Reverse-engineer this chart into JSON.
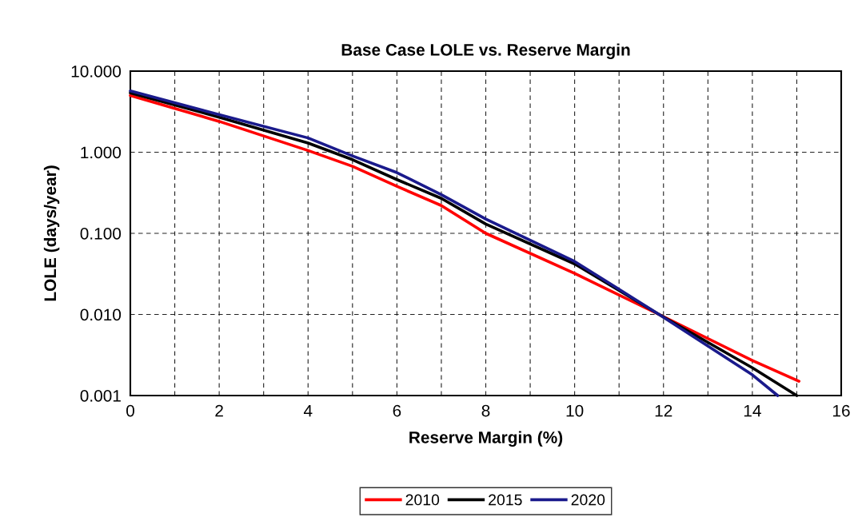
{
  "chart_data": {
    "type": "line",
    "title": "Base Case LOLE vs. Reserve Margin",
    "xlabel": "Reserve Margin (%)",
    "ylabel": "LOLE (days/year)",
    "log": "y",
    "xlim": [
      0,
      16
    ],
    "ylim": [
      0.001,
      10
    ],
    "xticks": [
      0,
      {
        "value": 1,
        "label": null
      },
      2,
      {
        "value": 3,
        "label": null
      },
      4,
      {
        "value": 5,
        "label": null
      },
      6,
      {
        "value": 7,
        "label": null
      },
      8,
      {
        "value": 9,
        "label": null
      },
      10,
      {
        "value": 11,
        "label": null
      },
      12,
      {
        "value": 13,
        "label": null
      },
      14,
      {
        "value": 15,
        "label": null
      },
      16
    ],
    "yticks": [
      {
        "value": 0.001,
        "label": "0.001"
      },
      {
        "value": 0.01,
        "label": "0.010"
      },
      {
        "value": 0.1,
        "label": "0.100"
      },
      {
        "value": 1,
        "label": "1.000"
      },
      {
        "value": 10,
        "label": "10.000"
      }
    ],
    "grid": true,
    "legend": "bottom",
    "line_style": "solid",
    "marker": "none",
    "series": [
      {
        "name": "2010",
        "color": "#ff0000",
        "x": [
          0,
          2,
          4,
          5,
          6,
          7,
          8,
          10,
          11.9,
          14,
          15.05
        ],
        "values": [
          5.0,
          2.4,
          1.05,
          0.67,
          0.38,
          0.22,
          0.1,
          0.032,
          0.01,
          0.0027,
          0.0015
        ]
      },
      {
        "name": "2015",
        "color": "#000000",
        "x": [
          0,
          2,
          4,
          5,
          6,
          7,
          8,
          10,
          11.9,
          14,
          15.0
        ],
        "values": [
          5.4,
          2.7,
          1.3,
          0.81,
          0.46,
          0.27,
          0.13,
          0.042,
          0.01,
          0.0022,
          0.001
        ]
      },
      {
        "name": "2020",
        "color": "#1a1a8c",
        "x": [
          0,
          2,
          4,
          5,
          6,
          7,
          8,
          10,
          11.9,
          14,
          14.57
        ],
        "values": [
          5.7,
          2.9,
          1.5,
          0.9,
          0.56,
          0.3,
          0.15,
          0.045,
          0.01,
          0.0018,
          0.001
        ]
      }
    ]
  }
}
